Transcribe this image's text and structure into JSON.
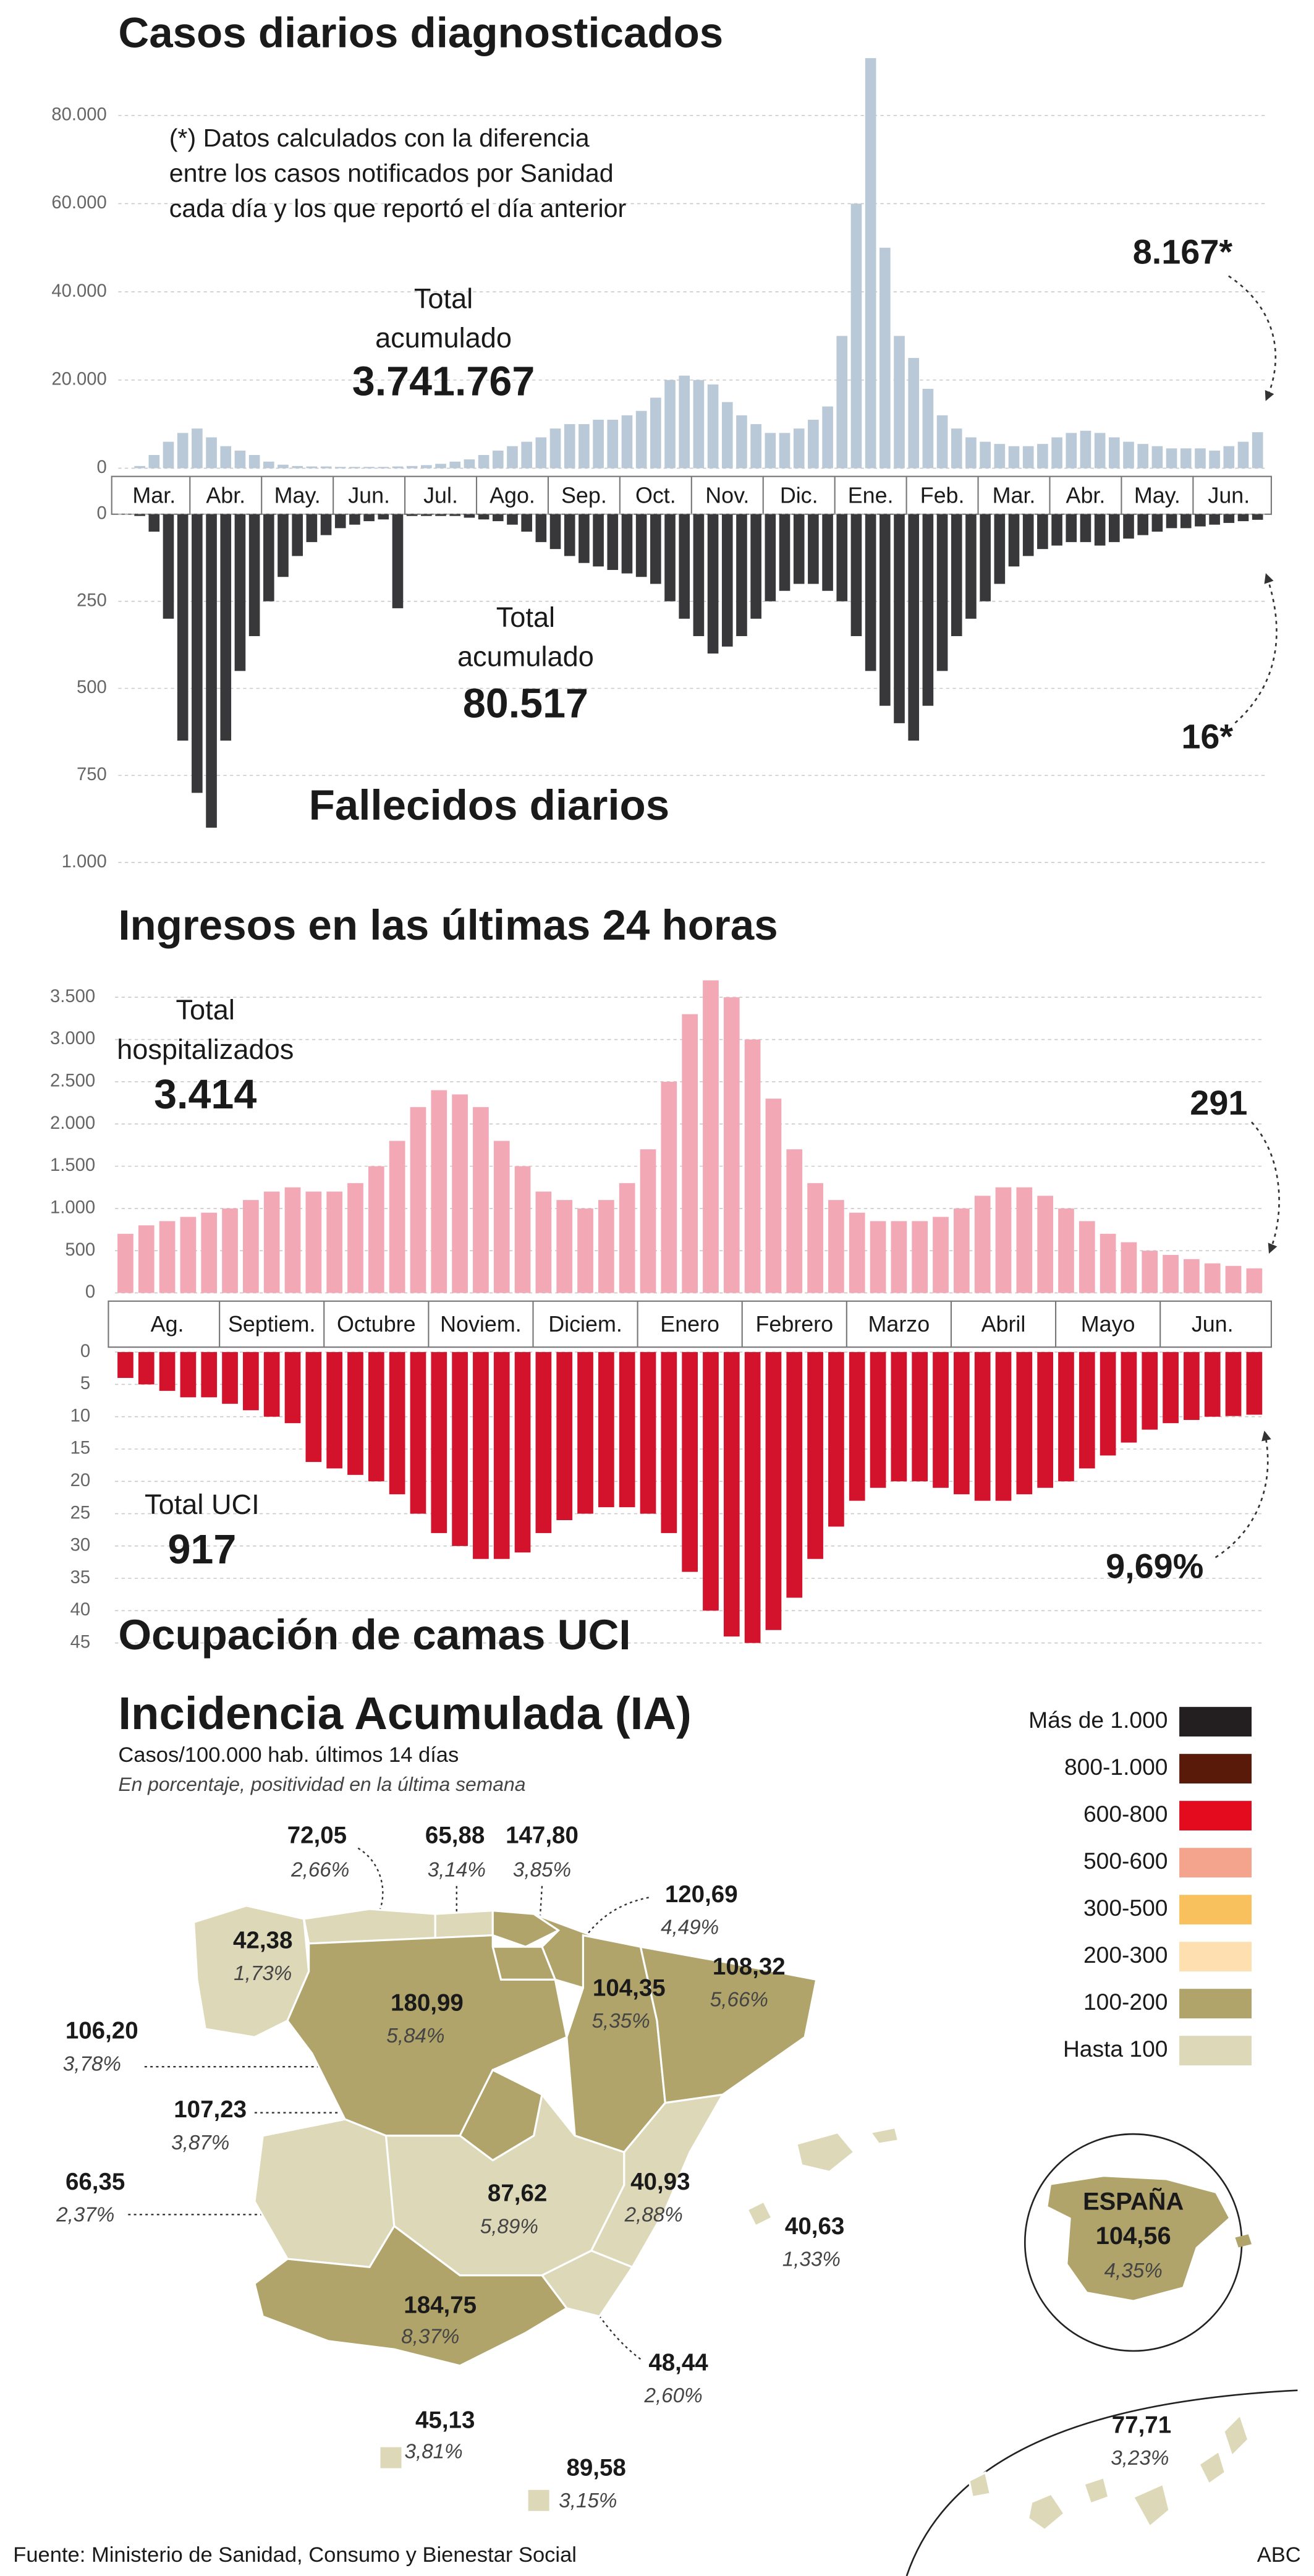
{
  "chart_data": [
    {
      "type": "bar",
      "title": "Casos diarios diagnosticados",
      "note_lines": [
        "(*) Datos calculados con la diferencia",
        "entre los casos notificados por Sanidad",
        "cada día y los que reportó el día anterior"
      ],
      "total_lines": [
        "Total",
        "acumulado"
      ],
      "total_value": "3.741.767",
      "last_label": "8.167*",
      "color": "#b9c9d7",
      "inverted": false,
      "grid": true,
      "ylim": [
        0,
        95000
      ],
      "yticks": [
        0,
        {
          "value": 20000,
          "label": "20.000"
        },
        {
          "value": 40000,
          "label": "40.000"
        },
        {
          "value": 60000,
          "label": "60.000"
        },
        {
          "value": 80000,
          "label": "80.000"
        }
      ],
      "month_labels": [
        "Mar.",
        "Abr.",
        "May.",
        "Jun.",
        "Jul.",
        "Ago.",
        "Sep.",
        "Oct.",
        "Nov.",
        "Dic.",
        "Ene.",
        "Feb.",
        "Mar.",
        "Abr.",
        "May.",
        "Jun."
      ],
      "values": [
        0,
        500,
        3000,
        6000,
        8000,
        9000,
        7000,
        5000,
        4000,
        3000,
        1500,
        800,
        500,
        400,
        400,
        300,
        300,
        300,
        300,
        400,
        500,
        700,
        1000,
        1500,
        2000,
        3000,
        4000,
        5000,
        6000,
        7000,
        9000,
        10000,
        10000,
        11000,
        11000,
        12000,
        13000,
        16000,
        20000,
        21000,
        20000,
        19000,
        15000,
        12000,
        10000,
        8000,
        8000,
        9000,
        11000,
        14000,
        30000,
        60000,
        93000,
        50000,
        30000,
        25000,
        18000,
        12000,
        9000,
        7000,
        6000,
        5500,
        5000,
        5000,
        5500,
        7000,
        8000,
        8500,
        8000,
        7000,
        6000,
        5500,
        5000,
        4500,
        4500,
        4500,
        4000,
        5000,
        6000,
        8167
      ]
    },
    {
      "type": "bar",
      "title": "Fallecidos diarios",
      "total_lines": [
        "Total",
        "acumulado"
      ],
      "total_value": "80.517",
      "last_label": "16*",
      "color": "#38383a",
      "inverted": true,
      "grid": true,
      "ylim": [
        0,
        1000
      ],
      "yticks": [
        0,
        250,
        500,
        750,
        {
          "value": 1000,
          "label": "1.000"
        }
      ],
      "values": [
        0,
        5,
        50,
        300,
        650,
        800,
        900,
        650,
        450,
        350,
        250,
        180,
        120,
        80,
        60,
        40,
        30,
        20,
        15,
        270,
        5,
        5,
        5,
        5,
        10,
        15,
        20,
        30,
        50,
        80,
        100,
        120,
        140,
        150,
        160,
        170,
        180,
        200,
        250,
        300,
        350,
        400,
        380,
        350,
        300,
        250,
        220,
        200,
        200,
        220,
        250,
        350,
        450,
        550,
        600,
        650,
        550,
        450,
        350,
        300,
        250,
        200,
        150,
        120,
        100,
        90,
        80,
        80,
        90,
        80,
        70,
        60,
        50,
        40,
        40,
        35,
        30,
        25,
        20,
        16
      ]
    },
    {
      "type": "bar",
      "title": "Ingresos en las últimas 24 horas",
      "total_lines": [
        "Total",
        "hospitalizados"
      ],
      "total_value": "3.414",
      "last_label": "291",
      "color": "#f3a9b5",
      "inverted": false,
      "grid": true,
      "ylim": [
        0,
        3800
      ],
      "yticks": [
        0,
        500,
        {
          "value": 1000,
          "label": "1.000"
        },
        {
          "value": 1500,
          "label": "1.500"
        },
        {
          "value": 2000,
          "label": "2.000"
        },
        {
          "value": 2500,
          "label": "2.500"
        },
        {
          "value": 3000,
          "label": "3.000"
        },
        {
          "value": 3500,
          "label": "3.500"
        }
      ],
      "month_labels": [
        "Ag.",
        "Septiem.",
        "Octubre",
        "Noviem.",
        "Diciem.",
        "Enero",
        "Febrero",
        "Marzo",
        "Abril",
        "Mayo",
        "Jun."
      ],
      "values": [
        700,
        800,
        850,
        900,
        950,
        1000,
        1100,
        1200,
        1250,
        1200,
        1200,
        1300,
        1500,
        1800,
        2200,
        2400,
        2350,
        2200,
        1800,
        1500,
        1200,
        1100,
        1000,
        1100,
        1300,
        1700,
        2500,
        3300,
        3700,
        3500,
        3000,
        2300,
        1700,
        1300,
        1100,
        950,
        850,
        850,
        850,
        900,
        1000,
        1150,
        1250,
        1250,
        1150,
        1000,
        850,
        700,
        600,
        500,
        450,
        400,
        350,
        320,
        291
      ]
    },
    {
      "type": "bar",
      "title": "Ocupación de camas UCI",
      "total_lines": [
        "Total UCI"
      ],
      "total_value": "917",
      "last_label": "9,69%",
      "color": "#d3122b",
      "inverted": true,
      "grid": true,
      "ylim": [
        0,
        46
      ],
      "yticks": [
        0,
        5,
        10,
        15,
        20,
        25,
        30,
        35,
        40,
        45
      ],
      "values": [
        4,
        5,
        6,
        7,
        7,
        8,
        9,
        10,
        11,
        17,
        18,
        19,
        20,
        22,
        25,
        28,
        30,
        32,
        32,
        31,
        28,
        26,
        25,
        24,
        24,
        25,
        28,
        34,
        40,
        44,
        45,
        43,
        38,
        32,
        27,
        23,
        21,
        20,
        20,
        21,
        22,
        23,
        23,
        22,
        21,
        20,
        18,
        16,
        14,
        12,
        11,
        10.5,
        10,
        9.9,
        9.69
      ]
    }
  ],
  "map": {
    "title": "Incidencia Acumulada (IA)",
    "subtitle": "Casos/100.000 hab. últimos 14 días",
    "subtitle2": "En porcentaje, positividad en la última semana",
    "legend": [
      {
        "label": "Más de 1.000",
        "color": "#231f20"
      },
      {
        "label": "800-1.000",
        "color": "#5a1a0a"
      },
      {
        "label": "600-800",
        "color": "#e30b1d"
      },
      {
        "label": "500-600",
        "color": "#f4a48c"
      },
      {
        "label": "300-500",
        "color": "#f9c15e"
      },
      {
        "label": "200-300",
        "color": "#fddfb0"
      },
      {
        "label": "100-200",
        "color": "#b0a46a"
      },
      {
        "label": "Hasta 100",
        "color": "#ddd8b8"
      }
    ],
    "regions": [
      {
        "value": "42,38",
        "positivity": "1,73%",
        "color": "#ddd8b8"
      },
      {
        "value": "72,05",
        "positivity": "2,66%",
        "color": "#ddd8b8"
      },
      {
        "value": "65,88",
        "positivity": "3,14%",
        "color": "#ddd8b8"
      },
      {
        "value": "147,80",
        "positivity": "3,85%",
        "color": "#b0a46a"
      },
      {
        "value": "120,69",
        "positivity": "4,49%",
        "color": "#b0a46a"
      },
      {
        "value": "180,99",
        "positivity": "5,84%",
        "color": "#b0a46a"
      },
      {
        "value": "104,35",
        "positivity": "5,35%",
        "color": "#b0a46a"
      },
      {
        "value": "108,32",
        "positivity": "5,66%",
        "color": "#b0a46a"
      },
      {
        "value": "106,20",
        "positivity": "3,78%",
        "color": "#b0a46a"
      },
      {
        "value": "107,23",
        "positivity": "3,87%",
        "color": "#b0a46a"
      },
      {
        "value": "66,35",
        "positivity": "2,37%",
        "color": "#ddd8b8"
      },
      {
        "value": "87,62",
        "positivity": "5,89%",
        "color": "#ddd8b8"
      },
      {
        "value": "40,93",
        "positivity": "2,88%",
        "color": "#ddd8b8"
      },
      {
        "value": "48,44",
        "positivity": "2,60%",
        "color": "#ddd8b8"
      },
      {
        "value": "184,75",
        "positivity": "8,37%",
        "color": "#b0a46a"
      },
      {
        "value": "40,63",
        "positivity": "1,33%",
        "color": "#ddd8b8"
      },
      {
        "value": "45,13",
        "positivity": "3,81%",
        "color": "#ddd8b8"
      },
      {
        "value": "89,58",
        "positivity": "3,15%",
        "color": "#ddd8b8"
      },
      {
        "value": "77,71",
        "positivity": "3,23%",
        "color": "#ddd8b8"
      }
    ],
    "espana": {
      "label": "ESPAÑA",
      "value": "104,56",
      "positivity": "4,35%",
      "color": "#b0a46a"
    },
    "source": "Fuente: Ministerio de Sanidad, Consumo y Bienestar Social",
    "credit": "ABC"
  }
}
